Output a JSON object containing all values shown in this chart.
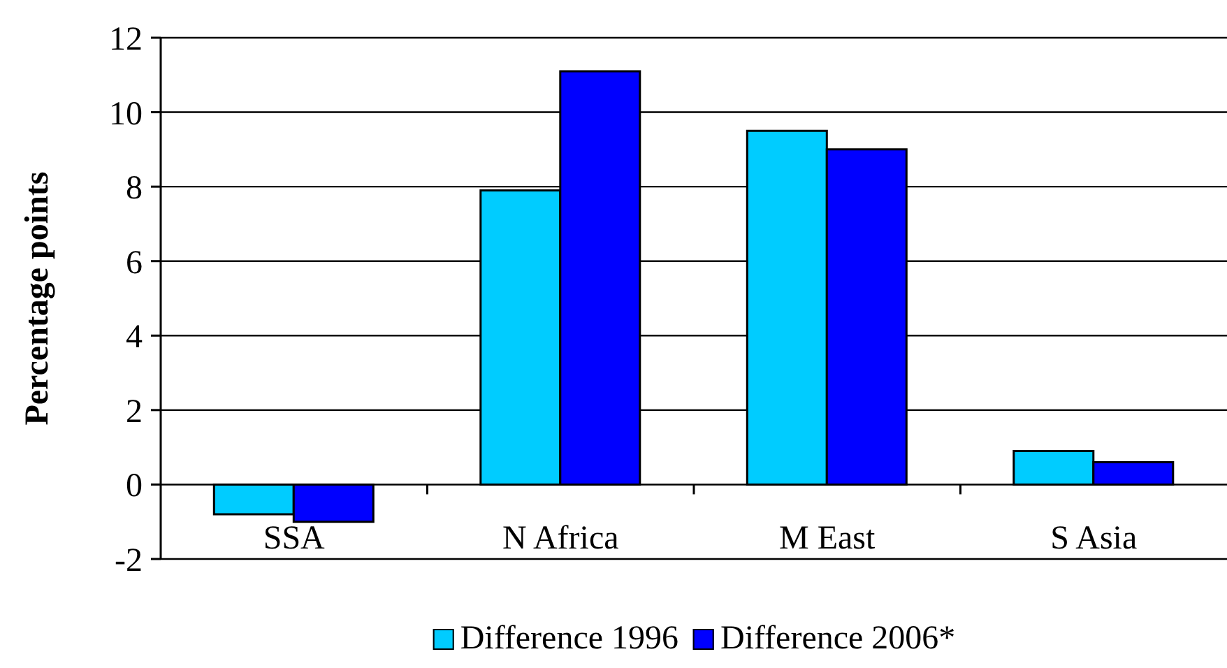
{
  "chart_data": {
    "type": "bar",
    "ylabel": "Percentage points",
    "categories": [
      "SSA",
      "N Africa",
      "M East",
      "S Asia"
    ],
    "series": [
      {
        "name": "Difference 1996",
        "color": "#00ccff",
        "values": [
          -0.8,
          7.9,
          9.5,
          0.9
        ]
      },
      {
        "name": "Difference 2006*",
        "color": "#0000ff",
        "values": [
          -1.0,
          11.1,
          9.0,
          0.6
        ]
      }
    ],
    "ylim": [
      -2,
      12
    ],
    "yticks": [
      -2,
      0,
      2,
      4,
      6,
      8,
      10,
      12
    ],
    "grid": "y",
    "legend": "bottom"
  }
}
